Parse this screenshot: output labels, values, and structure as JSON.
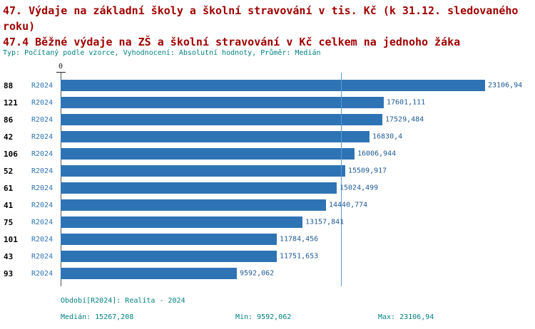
{
  "header": {
    "title_line1": "47. Výdaje na základní školy a školní stravování v tis. Kč (k 31.12. sledovaného roku)",
    "title_line2": "47.4 Běžné výdaje na ZŠ a školní stravování v Kč celkem na jednoho žáka",
    "subtitle": "Typ: Počítaný podle vzorce, Vyhodnocení: Absolutní hodnoty, Průměr: Medián"
  },
  "chart_data": {
    "type": "bar",
    "orientation": "horizontal",
    "x_axis_zero_label": "0",
    "series_name": "R2024",
    "categories": [
      "88",
      "121",
      "86",
      "42",
      "106",
      "52",
      "61",
      "41",
      "75",
      "101",
      "43",
      "93"
    ],
    "values": [
      23106.94,
      17601.111,
      17529.484,
      16830.4,
      16006.944,
      15509.917,
      15024.499,
      14440.774,
      13157.841,
      11784.456,
      11751.653,
      9592.062
    ],
    "value_labels": [
      "23106,94",
      "17601,111",
      "17529,484",
      "16830,4",
      "16006,944",
      "15509,917",
      "15024,499",
      "14440,774",
      "13157,841",
      "11784,456",
      "11751,653",
      "9592,062"
    ],
    "median_value": 15267.208,
    "xlim": [
      0,
      23106.94
    ],
    "grid": false,
    "legend_position": "none"
  },
  "footer": {
    "period": "Období[R2024]: Realita - 2024",
    "median": "Medián: 15267,208",
    "min": "Min: 9592,062",
    "max": "Max: 23106,94"
  },
  "colors": {
    "title_color": "#a00000",
    "subtitle_color": "#008080",
    "bar_color": "#2e74b5",
    "bar_value_color": "#1d5a96",
    "series_label_color": "#2e74b5",
    "category_label_color": "#000000",
    "footer_color": "#008080",
    "axis_color": "#555555",
    "median_line_color": "#5b9bd5"
  }
}
